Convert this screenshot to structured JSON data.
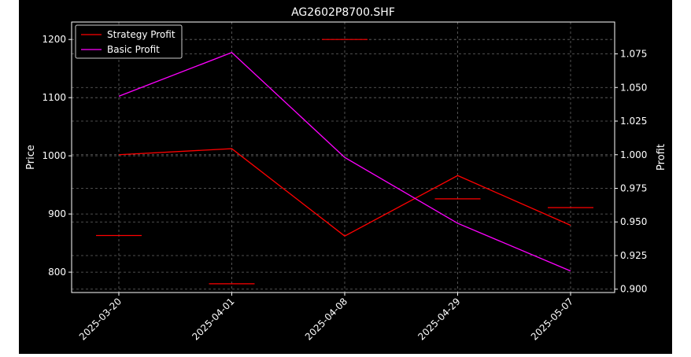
{
  "chart_data": {
    "type": "line",
    "title": "AG2602P8700.SHF",
    "xlabel": "",
    "ylabel_left": "Price",
    "ylabel_right": "Profit",
    "categories": [
      "2025-03-20",
      "2025-04-01",
      "2025-04-08",
      "2025-04-29",
      "2025-05-07"
    ],
    "price_axis": {
      "ylim": [
        765,
        1230
      ],
      "ticks": [
        800,
        900,
        1000,
        1100,
        1200
      ]
    },
    "profit_axis": {
      "ylim": [
        0.8975,
        1.0987
      ],
      "ticks": [
        0.9,
        0.925,
        0.95,
        0.975,
        1.0,
        1.025,
        1.05,
        1.075
      ],
      "tick_labels": [
        "0.900",
        "0.925",
        "0.950",
        "0.975",
        "1.000",
        "1.025",
        "1.050",
        "1.075"
      ]
    },
    "price_levels": [
      863,
      780,
      1200,
      926,
      911
    ],
    "series": [
      {
        "name": "Strategy Profit",
        "axis": "right",
        "color": "#ff0000",
        "values": [
          1.0,
          1.0045,
          0.9395,
          0.9845,
          0.9475
        ]
      },
      {
        "name": "Basic Profit",
        "axis": "right",
        "color": "#ff00ff",
        "values": [
          1.0435,
          1.076,
          0.998,
          0.949,
          0.9135
        ]
      }
    ],
    "grid": true,
    "legend": "top-left"
  }
}
